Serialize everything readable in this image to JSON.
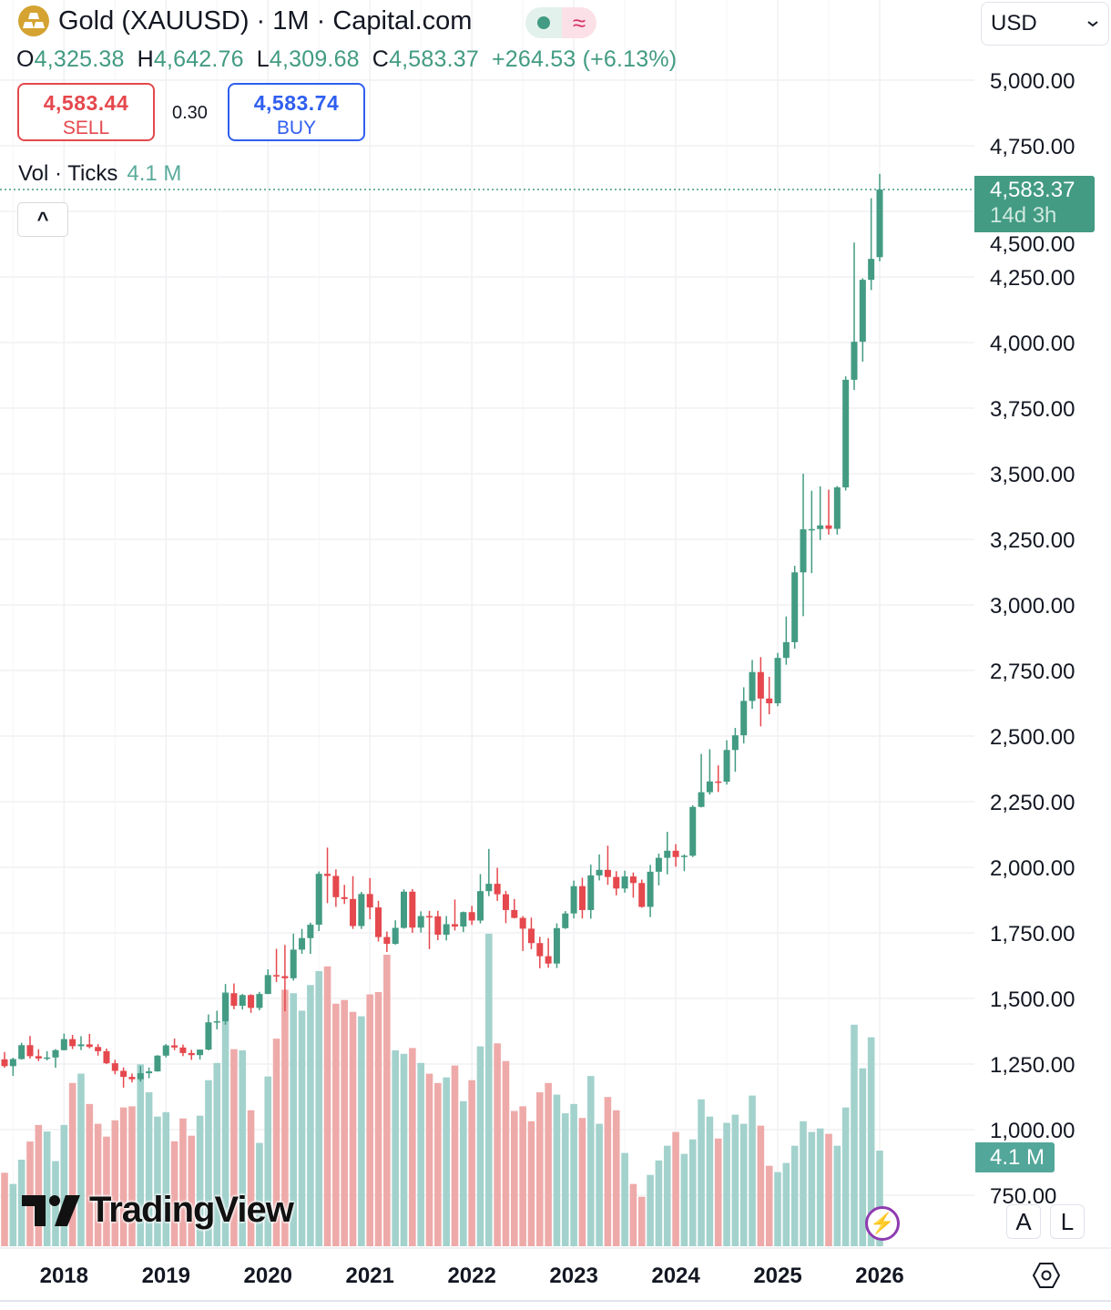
{
  "header": {
    "symbol_title": "Gold (XAUUSD) · 1M · Capital.com",
    "market_status_icon": "market-open-dot-icon",
    "data_delay_icon": "approx-icon",
    "data_delay_glyph": "≈",
    "currency_select": "USD"
  },
  "ohlc": {
    "o_label": "O",
    "open": "4,325.38",
    "h_label": "H",
    "high": "4,642.76",
    "l_label": "L",
    "low": "4,309.68",
    "c_label": "C",
    "close": "4,583.37",
    "change": "+264.53 (+6.13%)"
  },
  "trade": {
    "sell_price": "4,583.44",
    "sell_label": "SELL",
    "spread": "0.30",
    "buy_price": "4,583.74",
    "buy_label": "BUY"
  },
  "volume_legend": {
    "label": "Vol · Ticks",
    "value": "4.1 M"
  },
  "collapse_glyph": "^",
  "price_tag": {
    "price": "4,583.37",
    "countdown": "14d 3h"
  },
  "volume_tag": "4.1 M",
  "watermark": "TradingView",
  "bottom_buttons": {
    "auto": "A",
    "log": "L"
  },
  "colors": {
    "up": "#429b82",
    "down": "#e5484d",
    "vol_up": "#a3d2cd",
    "vol_down": "#eeaaa9",
    "sell": "#e5484d",
    "buy": "#2f5ef0"
  },
  "chart_data": {
    "type": "candlestick",
    "interval": "1M",
    "start": "2017-06",
    "y_ticks": [
      "5,000.00",
      "4,750.00",
      "4,500.00",
      "4,250.00",
      "4,000.00",
      "3,750.00",
      "3,500.00",
      "3,250.00",
      "3,000.00",
      "2,750.00",
      "2,500.00",
      "2,250.00",
      "2,000.00",
      "1,750.00",
      "1,500.00",
      "1,250.00",
      "1,000.00",
      "750.00"
    ],
    "y_tick_values": [
      5000,
      4750,
      4500,
      4250,
      4000,
      3750,
      3500,
      3250,
      3000,
      2750,
      2500,
      2250,
      2000,
      1750,
      1500,
      1250,
      1000,
      750
    ],
    "x_ticks": [
      "2018",
      "2019",
      "2020",
      "2021",
      "2022",
      "2023",
      "2024",
      "2025",
      "2026"
    ],
    "ylim": [
      700,
      5000
    ],
    "grid": true,
    "last_price": 4583.37,
    "ohlc": [
      [
        1268,
        1296,
        1236,
        1242
      ],
      [
        1242,
        1274,
        1205,
        1269
      ],
      [
        1269,
        1331,
        1267,
        1322
      ],
      [
        1322,
        1357,
        1271,
        1280
      ],
      [
        1280,
        1306,
        1261,
        1271
      ],
      [
        1271,
        1299,
        1264,
        1275
      ],
      [
        1275,
        1307,
        1236,
        1303
      ],
      [
        1303,
        1366,
        1302,
        1345
      ],
      [
        1345,
        1361,
        1307,
        1318
      ],
      [
        1318,
        1356,
        1303,
        1325
      ],
      [
        1325,
        1365,
        1310,
        1315
      ],
      [
        1315,
        1326,
        1282,
        1299
      ],
      [
        1299,
        1309,
        1250,
        1253
      ],
      [
        1253,
        1266,
        1211,
        1224
      ],
      [
        1224,
        1237,
        1160,
        1201
      ],
      [
        1201,
        1214,
        1180,
        1192
      ],
      [
        1192,
        1243,
        1183,
        1215
      ],
      [
        1215,
        1237,
        1196,
        1222
      ],
      [
        1222,
        1284,
        1221,
        1282
      ],
      [
        1282,
        1326,
        1275,
        1321
      ],
      [
        1321,
        1347,
        1303,
        1313
      ],
      [
        1313,
        1324,
        1280,
        1292
      ],
      [
        1292,
        1304,
        1266,
        1284
      ],
      [
        1284,
        1305,
        1267,
        1305
      ],
      [
        1305,
        1439,
        1302,
        1409
      ],
      [
        1409,
        1453,
        1382,
        1413
      ],
      [
        1413,
        1555,
        1400,
        1520
      ],
      [
        1520,
        1557,
        1459,
        1472
      ],
      [
        1472,
        1517,
        1458,
        1513
      ],
      [
        1513,
        1516,
        1445,
        1464
      ],
      [
        1464,
        1525,
        1455,
        1517
      ],
      [
        1517,
        1611,
        1517,
        1589
      ],
      [
        1589,
        1689,
        1563,
        1585
      ],
      [
        1585,
        1704,
        1451,
        1577
      ],
      [
        1577,
        1747,
        1568,
        1686
      ],
      [
        1686,
        1765,
        1670,
        1730
      ],
      [
        1730,
        1789,
        1670,
        1781
      ],
      [
        1781,
        1984,
        1757,
        1975
      ],
      [
        1975,
        2075,
        1863,
        1967
      ],
      [
        1967,
        1992,
        1849,
        1886
      ],
      [
        1886,
        1933,
        1860,
        1879
      ],
      [
        1879,
        1966,
        1765,
        1776
      ],
      [
        1776,
        1906,
        1765,
        1898
      ],
      [
        1898,
        1959,
        1802,
        1847
      ],
      [
        1847,
        1872,
        1717,
        1734
      ],
      [
        1734,
        1755,
        1677,
        1708
      ],
      [
        1708,
        1798,
        1705,
        1769
      ],
      [
        1769,
        1916,
        1766,
        1907
      ],
      [
        1907,
        1917,
        1750,
        1770
      ],
      [
        1770,
        1832,
        1751,
        1814
      ],
      [
        1814,
        1834,
        1688,
        1813
      ],
      [
        1813,
        1834,
        1722,
        1743
      ],
      [
        1743,
        1814,
        1721,
        1783
      ],
      [
        1783,
        1877,
        1759,
        1774
      ],
      [
        1774,
        1831,
        1753,
        1829
      ],
      [
        1829,
        1853,
        1780,
        1797
      ],
      [
        1797,
        1974,
        1786,
        1909
      ],
      [
        1909,
        2070,
        1890,
        1937
      ],
      [
        1937,
        1998,
        1872,
        1897
      ],
      [
        1897,
        1910,
        1787,
        1837
      ],
      [
        1837,
        1879,
        1805,
        1807
      ],
      [
        1807,
        1814,
        1681,
        1766
      ],
      [
        1766,
        1808,
        1688,
        1711
      ],
      [
        1711,
        1735,
        1615,
        1661
      ],
      [
        1661,
        1730,
        1617,
        1633
      ],
      [
        1633,
        1786,
        1616,
        1768
      ],
      [
        1768,
        1833,
        1765,
        1824
      ],
      [
        1824,
        1949,
        1805,
        1928
      ],
      [
        1928,
        1960,
        1805,
        1837
      ],
      [
        1837,
        2010,
        1804,
        1969
      ],
      [
        1969,
        2049,
        1950,
        1990
      ],
      [
        1990,
        2082,
        1933,
        1963
      ],
      [
        1963,
        1985,
        1893,
        1919
      ],
      [
        1919,
        1987,
        1903,
        1965
      ],
      [
        1965,
        1980,
        1884,
        1940
      ],
      [
        1940,
        1953,
        1846,
        1849
      ],
      [
        1849,
        2009,
        1810,
        1983
      ],
      [
        1983,
        2052,
        1931,
        2036
      ],
      [
        2036,
        2135,
        1973,
        2063
      ],
      [
        2063,
        2088,
        2002,
        2039
      ],
      [
        2039,
        2049,
        1985,
        2044
      ],
      [
        2044,
        2236,
        2039,
        2230
      ],
      [
        2230,
        2432,
        2228,
        2286
      ],
      [
        2286,
        2450,
        2277,
        2327
      ],
      [
        2327,
        2388,
        2287,
        2326
      ],
      [
        2326,
        2484,
        2315,
        2447
      ],
      [
        2447,
        2531,
        2364,
        2503
      ],
      [
        2503,
        2686,
        2472,
        2634
      ],
      [
        2634,
        2790,
        2604,
        2744
      ],
      [
        2744,
        2801,
        2537,
        2643
      ],
      [
        2643,
        2726,
        2583,
        2625
      ],
      [
        2625,
        2817,
        2614,
        2798
      ],
      [
        2798,
        2956,
        2772,
        2858
      ],
      [
        2858,
        3149,
        2833,
        3124
      ],
      [
        3124,
        3500,
        2957,
        3288
      ],
      [
        3288,
        3435,
        3121,
        3289
      ],
      [
        3289,
        3452,
        3247,
        3303
      ],
      [
        3303,
        3439,
        3268,
        3290
      ],
      [
        3290,
        3453,
        3268,
        3448
      ],
      [
        3448,
        3871,
        3436,
        3858
      ],
      [
        3858,
        4381,
        3819,
        4003
      ],
      [
        4003,
        4245,
        3927,
        4239
      ],
      [
        4239,
        4550,
        4200,
        4318.84
      ],
      [
        4325.38,
        4642.76,
        4309.68,
        4583.37
      ]
    ],
    "volume_millions": [
      3.15,
      2.67,
      3.71,
      4.49,
      5.2,
      4.92,
      3.65,
      5.2,
      7.0,
      7.4,
      6.1,
      5.25,
      4.7,
      5.4,
      5.95,
      6.0,
      7.8,
      6.6,
      5.56,
      5.75,
      4.5,
      5.48,
      4.74,
      5.6,
      7.12,
      7.86,
      10.9,
      8.45,
      8.4,
      5.83,
      4.43,
      7.28,
      8.9,
      11.0,
      10.85,
      10.1,
      11.2,
      11.8,
      12.0,
      10.4,
      10.56,
      10.05,
      9.86,
      10.8,
      10.9,
      12.5,
      8.4,
      8.25,
      8.5,
      7.86,
      7.4,
      7.0,
      7.24,
      7.75,
      6.22,
      7.12,
      8.57,
      13.4,
      8.7,
      7.94,
      5.8,
      6.0,
      5.36,
      6.6,
      7.0,
      6.5,
      5.7,
      6.1,
      5.5,
      7.3,
      5.25,
      6.4,
      5.83,
      4.0,
      2.67,
      2.12,
      3.06,
      3.68,
      4.31,
      4.9,
      3.96,
      4.58,
      6.3,
      5.56,
      4.62,
      5.29,
      5.64,
      5.25,
      6.46,
      5.17,
      3.45,
      3.18,
      3.57,
      4.31,
      5.36,
      4.9,
      5.05,
      4.82,
      4.31,
      5.95,
      9.5,
      7.63,
      8.96,
      4.1
    ]
  }
}
